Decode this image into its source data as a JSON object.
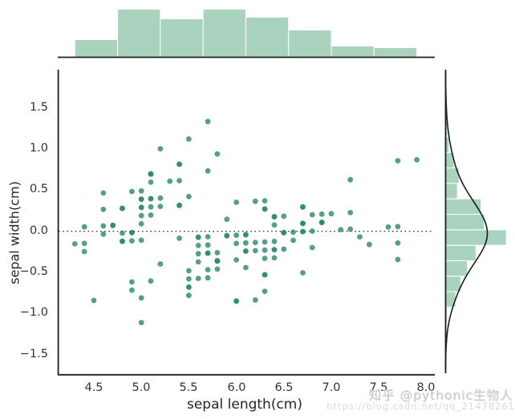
{
  "figure": {
    "kind": "seaborn-jointplot-resid",
    "background": "#ffffff"
  },
  "colors": {
    "dot": "#2e8b69",
    "hist_fill": "#a9d3be",
    "hist_edge": "#ffffff",
    "kde_line": "#1c1c1c",
    "spine": "#1f1f1f",
    "zero_line": "#3a3a3a",
    "tick_text": "#333333",
    "watermark": "#c7c7c7"
  },
  "watermark": {
    "line1": "知乎 @pythonic生物人",
    "line2": "https://blog.csdn.net/qq_21478261"
  },
  "chart_data": {
    "type": "scatter",
    "title": "",
    "xlabel": "sepal length(cm)",
    "ylabel": "sepal width(cm)",
    "grid": false,
    "legend": false,
    "xlim": [
      4.1,
      8.09
    ],
    "ylim": [
      -1.75,
      1.95
    ],
    "x_ticks": [
      4.5,
      5.0,
      5.5,
      6.0,
      6.5,
      7.0,
      7.5,
      8.0
    ],
    "x_tick_labels": [
      "4.5",
      "5.0",
      "5.5",
      "6.0",
      "6.5",
      "7.0",
      "7.5",
      "8.0"
    ],
    "y_ticks": [
      1.5,
      1.0,
      0.5,
      0.0,
      -0.5,
      -1.0,
      -1.5
    ],
    "y_tick_labels": [
      "1.5",
      "1.0",
      "0.5",
      "0.0",
      "−0.5",
      "−1.0",
      "−1.5"
    ],
    "zero_line_y": 0.0,
    "note": "Residual plot: y = sepal_width - (intercept + slope * sepal_length); x = sepal_length (iris dataset, n=150)",
    "regression": {
      "slope": -0.0618848,
      "intercept": 3.41895
    },
    "sepal_length": [
      5.1,
      4.9,
      4.7,
      4.6,
      5.0,
      5.4,
      4.6,
      5.0,
      4.4,
      4.9,
      5.4,
      4.8,
      4.8,
      4.3,
      5.8,
      5.7,
      5.4,
      5.1,
      5.7,
      5.1,
      5.4,
      5.1,
      4.6,
      5.1,
      4.8,
      5.0,
      5.0,
      5.2,
      5.2,
      4.7,
      4.8,
      5.4,
      5.2,
      5.5,
      4.9,
      5.0,
      5.5,
      4.9,
      4.4,
      5.1,
      5.0,
      4.5,
      4.4,
      5.0,
      5.1,
      4.8,
      5.1,
      4.6,
      5.3,
      5.0,
      7.0,
      6.4,
      6.9,
      5.5,
      6.5,
      5.7,
      6.3,
      4.9,
      6.6,
      5.2,
      5.0,
      5.9,
      6.0,
      6.1,
      5.6,
      6.7,
      5.6,
      5.8,
      6.2,
      5.6,
      5.9,
      6.1,
      6.3,
      6.1,
      6.4,
      6.6,
      6.8,
      6.7,
      6.0,
      5.7,
      5.5,
      5.5,
      5.8,
      6.0,
      5.4,
      6.0,
      6.7,
      6.3,
      5.6,
      5.5,
      5.5,
      6.1,
      5.8,
      5.0,
      5.6,
      5.7,
      5.7,
      6.2,
      5.1,
      5.7,
      6.3,
      5.8,
      7.1,
      6.3,
      6.5,
      7.6,
      4.9,
      7.3,
      6.7,
      7.2,
      6.5,
      6.4,
      6.8,
      5.7,
      5.8,
      6.4,
      6.5,
      7.7,
      7.7,
      6.0,
      6.9,
      5.6,
      7.7,
      6.3,
      6.7,
      7.2,
      6.2,
      6.1,
      6.4,
      7.2,
      7.4,
      7.9,
      6.4,
      6.3,
      6.1,
      7.7,
      6.3,
      6.4,
      6.0,
      6.9,
      6.7,
      6.9,
      5.8,
      6.8,
      6.7,
      6.7,
      6.3,
      6.5,
      6.2,
      5.9
    ],
    "sepal_width": [
      3.5,
      3.0,
      3.2,
      3.1,
      3.6,
      3.9,
      3.4,
      3.4,
      2.9,
      3.1,
      3.7,
      3.4,
      3.0,
      3.0,
      4.0,
      4.4,
      3.9,
      3.5,
      3.8,
      3.8,
      3.4,
      3.7,
      3.6,
      3.3,
      3.4,
      3.0,
      3.4,
      3.5,
      3.4,
      3.2,
      3.1,
      3.4,
      4.1,
      4.2,
      3.1,
      3.2,
      3.5,
      3.6,
      3.0,
      3.4,
      3.5,
      2.3,
      3.2,
      3.5,
      3.8,
      3.0,
      3.8,
      3.2,
      3.7,
      3.3,
      3.2,
      3.2,
      3.1,
      2.3,
      2.8,
      2.8,
      3.3,
      2.4,
      2.9,
      2.7,
      2.0,
      3.0,
      2.2,
      2.9,
      2.9,
      3.1,
      3.0,
      2.7,
      2.2,
      2.5,
      3.2,
      2.8,
      2.5,
      2.8,
      2.9,
      3.0,
      2.8,
      3.0,
      2.9,
      2.6,
      2.4,
      2.4,
      2.7,
      2.7,
      3.0,
      3.4,
      3.1,
      2.3,
      3.0,
      2.5,
      2.6,
      3.0,
      2.6,
      2.3,
      2.7,
      3.0,
      2.9,
      2.9,
      2.5,
      2.8,
      3.3,
      2.7,
      3.0,
      2.9,
      3.0,
      3.0,
      2.5,
      2.9,
      2.5,
      3.6,
      3.2,
      2.7,
      3.0,
      2.5,
      2.8,
      3.2,
      3.0,
      3.8,
      2.6,
      2.2,
      3.2,
      2.8,
      2.8,
      2.7,
      3.3,
      3.2,
      2.8,
      3.0,
      2.8,
      3.0,
      2.8,
      3.8,
      2.8,
      2.8,
      2.6,
      3.0,
      3.4,
      3.1,
      3.0,
      3.1,
      3.1,
      3.1,
      2.7,
      3.2,
      3.3,
      3.0,
      2.5,
      3.0,
      3.4,
      3.0
    ],
    "marginal_top_hist": {
      "orientation": "vertical",
      "bin_start": 4.3,
      "bin_width": 0.45,
      "bin_count": 8,
      "variable": "sepal_length"
    },
    "marginal_right_hist": {
      "orientation": "horizontal",
      "bin_count": 13,
      "variable": "residual"
    },
    "marginal_right_kde": {
      "bandwidth": 0.25,
      "line_color": "#1c1c1c"
    }
  }
}
